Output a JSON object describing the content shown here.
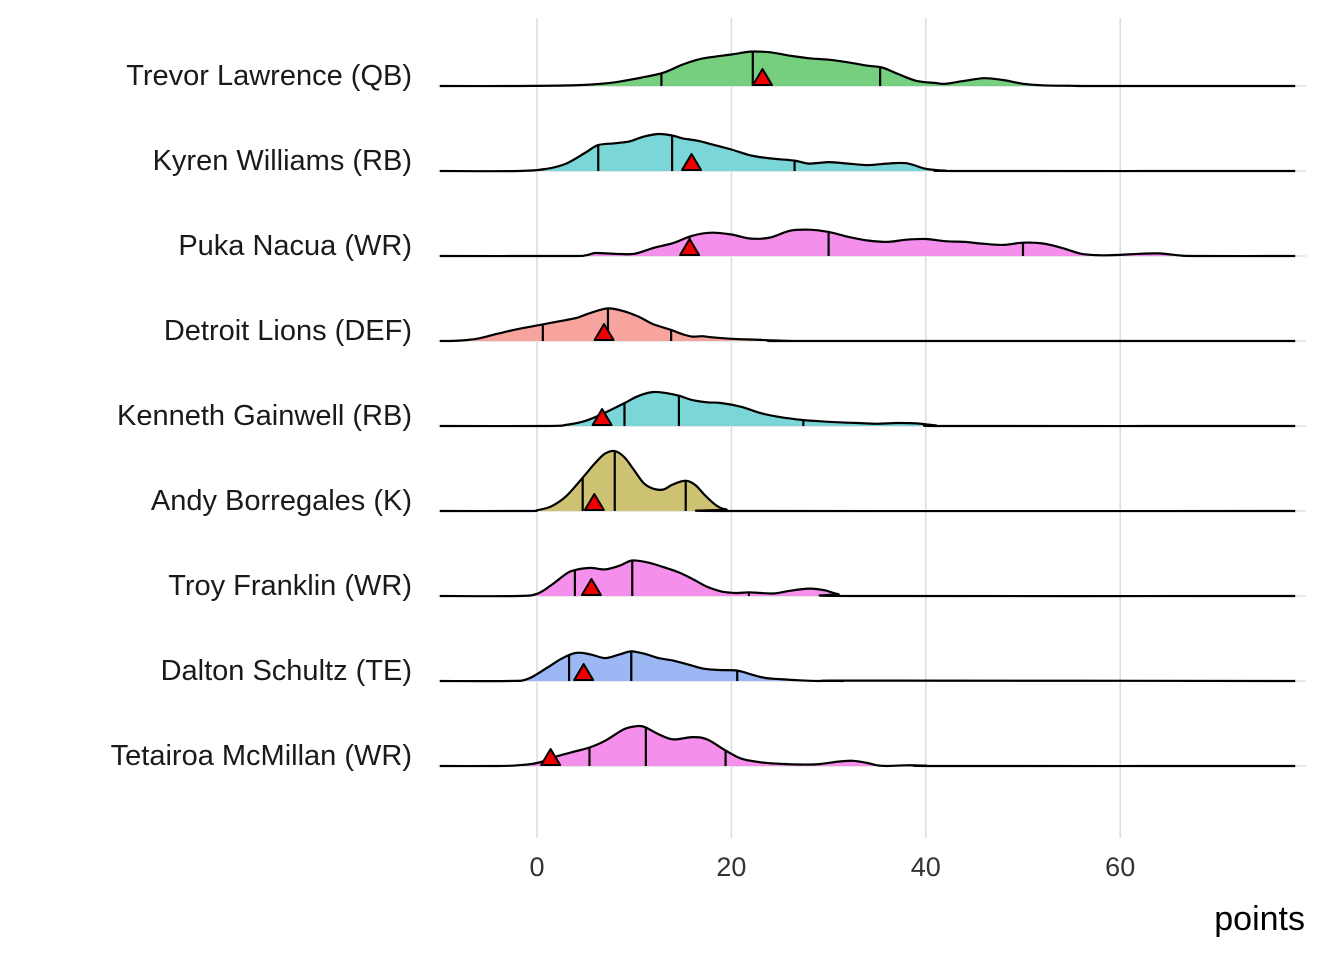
{
  "chart_data": {
    "type": "ridgeline",
    "xlabel": "points",
    "ylabel": "",
    "xlim": [
      -10,
      78
    ],
    "xticks": [
      0,
      20,
      40,
      60
    ],
    "grid": true,
    "players": [
      {
        "label": "Trevor Lawrence (QB)",
        "color": "#6fcd7a",
        "actual": 23.2,
        "quantiles": [
          12.8,
          22.2,
          35.3
        ],
        "density": [
          [
            -10,
            0
          ],
          [
            -2,
            0
          ],
          [
            2,
            0.01
          ],
          [
            5,
            0.03
          ],
          [
            8,
            0.1
          ],
          [
            11,
            0.24
          ],
          [
            13,
            0.36
          ],
          [
            15,
            0.58
          ],
          [
            17,
            0.74
          ],
          [
            20,
            0.85
          ],
          [
            22,
            0.93
          ],
          [
            24,
            0.91
          ],
          [
            26,
            0.82
          ],
          [
            28,
            0.75
          ],
          [
            30,
            0.71
          ],
          [
            32,
            0.64
          ],
          [
            34,
            0.55
          ],
          [
            35.5,
            0.5
          ],
          [
            37,
            0.34
          ],
          [
            39,
            0.14
          ],
          [
            41,
            0.08
          ],
          [
            42,
            0.06
          ],
          [
            44,
            0.14
          ],
          [
            46,
            0.21
          ],
          [
            48,
            0.16
          ],
          [
            50,
            0.06
          ],
          [
            52,
            0.02
          ],
          [
            55,
            0.005
          ],
          [
            58,
            0
          ],
          [
            78,
            0
          ]
        ]
      },
      {
        "label": "Kyren Williams (RB)",
        "color": "#76d4d6",
        "actual": 15.9,
        "quantiles": [
          6.3,
          13.9,
          26.5
        ],
        "density": [
          [
            -10,
            0
          ],
          [
            -2,
            0
          ],
          [
            1,
            0.06
          ],
          [
            3,
            0.2
          ],
          [
            5,
            0.5
          ],
          [
            6.3,
            0.7
          ],
          [
            8,
            0.75
          ],
          [
            9.5,
            0.8
          ],
          [
            11,
            0.93
          ],
          [
            12.5,
            1.0
          ],
          [
            13.9,
            0.96
          ],
          [
            15,
            0.88
          ],
          [
            16.5,
            0.82
          ],
          [
            18,
            0.72
          ],
          [
            20,
            0.58
          ],
          [
            22,
            0.42
          ],
          [
            24,
            0.34
          ],
          [
            26.5,
            0.28
          ],
          [
            28,
            0.2
          ],
          [
            30,
            0.24
          ],
          [
            32,
            0.2
          ],
          [
            34,
            0.16
          ],
          [
            36,
            0.2
          ],
          [
            38,
            0.21
          ],
          [
            40,
            0.06
          ],
          [
            42,
            0.01
          ],
          [
            44,
            0
          ],
          [
            78,
            0
          ]
        ]
      },
      {
        "label": "Puka Nacua (WR)",
        "color": "#f48aea",
        "actual": 15.7,
        "quantiles": [
          15.7,
          30.0,
          50.0
        ],
        "density": [
          [
            -10,
            0
          ],
          [
            3,
            0
          ],
          [
            5,
            0.02
          ],
          [
            6,
            0.08
          ],
          [
            8,
            0.06
          ],
          [
            10,
            0.06
          ],
          [
            12,
            0.22
          ],
          [
            14,
            0.35
          ],
          [
            16,
            0.55
          ],
          [
            18,
            0.63
          ],
          [
            20,
            0.58
          ],
          [
            22,
            0.47
          ],
          [
            24,
            0.5
          ],
          [
            26,
            0.68
          ],
          [
            28,
            0.71
          ],
          [
            30,
            0.65
          ],
          [
            32,
            0.52
          ],
          [
            34,
            0.42
          ],
          [
            36,
            0.38
          ],
          [
            38,
            0.44
          ],
          [
            40,
            0.46
          ],
          [
            42,
            0.4
          ],
          [
            44,
            0.38
          ],
          [
            46,
            0.33
          ],
          [
            48,
            0.3
          ],
          [
            50,
            0.36
          ],
          [
            52,
            0.34
          ],
          [
            54,
            0.22
          ],
          [
            56,
            0.06
          ],
          [
            58,
            0.02
          ],
          [
            60,
            0.03
          ],
          [
            62,
            0.06
          ],
          [
            64,
            0.07
          ],
          [
            66,
            0.02
          ],
          [
            68,
            0
          ],
          [
            78,
            0
          ]
        ]
      },
      {
        "label": "Detroit Lions (DEF)",
        "color": "#f7a09b",
        "actual": 6.9,
        "quantiles": [
          0.6,
          7.3,
          13.8
        ],
        "density": [
          [
            -10,
            0
          ],
          [
            -8,
            0.01
          ],
          [
            -6,
            0.07
          ],
          [
            -4,
            0.2
          ],
          [
            -2,
            0.32
          ],
          [
            0.6,
            0.45
          ],
          [
            2,
            0.52
          ],
          [
            4,
            0.62
          ],
          [
            5.5,
            0.76
          ],
          [
            7.3,
            0.88
          ],
          [
            9,
            0.8
          ],
          [
            10.5,
            0.65
          ],
          [
            12,
            0.45
          ],
          [
            13.8,
            0.3
          ],
          [
            15,
            0.18
          ],
          [
            16,
            0.12
          ],
          [
            17,
            0.13
          ],
          [
            18,
            0.1
          ],
          [
            20,
            0.06
          ],
          [
            22,
            0.04
          ],
          [
            24,
            0.02
          ],
          [
            26,
            0.005
          ],
          [
            28,
            0
          ],
          [
            78,
            0
          ]
        ]
      },
      {
        "label": "Kenneth Gainwell (RB)",
        "color": "#76d4d6",
        "actual": 6.7,
        "quantiles": [
          9.0,
          14.6,
          27.4
        ],
        "density": [
          [
            -10,
            0
          ],
          [
            1,
            0
          ],
          [
            3,
            0.03
          ],
          [
            5,
            0.14
          ],
          [
            7,
            0.36
          ],
          [
            9,
            0.62
          ],
          [
            10.5,
            0.82
          ],
          [
            12,
            0.92
          ],
          [
            13.5,
            0.88
          ],
          [
            14.6,
            0.82
          ],
          [
            16,
            0.7
          ],
          [
            17.5,
            0.64
          ],
          [
            19,
            0.62
          ],
          [
            21,
            0.52
          ],
          [
            23,
            0.35
          ],
          [
            25,
            0.24
          ],
          [
            27.4,
            0.16
          ],
          [
            29,
            0.13
          ],
          [
            31,
            0.1
          ],
          [
            33,
            0.08
          ],
          [
            35,
            0.06
          ],
          [
            37,
            0.08
          ],
          [
            39,
            0.07
          ],
          [
            41,
            0.02
          ],
          [
            43,
            0
          ],
          [
            78,
            0
          ]
        ]
      },
      {
        "label": "Andy Borregales (K)",
        "color": "#cbbe6c",
        "actual": 5.9,
        "quantiles": [
          4.7,
          8.0,
          15.3
        ],
        "density": [
          [
            -10,
            0
          ],
          [
            -1,
            0
          ],
          [
            0,
            0.02
          ],
          [
            1.5,
            0.13
          ],
          [
            3,
            0.4
          ],
          [
            4.7,
            0.9
          ],
          [
            6,
            1.3
          ],
          [
            7,
            1.55
          ],
          [
            8,
            1.62
          ],
          [
            9,
            1.45
          ],
          [
            10,
            1.1
          ],
          [
            11,
            0.75
          ],
          [
            12,
            0.6
          ],
          [
            13,
            0.58
          ],
          [
            14,
            0.72
          ],
          [
            15.3,
            0.82
          ],
          [
            16.3,
            0.7
          ],
          [
            17.3,
            0.42
          ],
          [
            18.5,
            0.14
          ],
          [
            19.5,
            0.04
          ],
          [
            21,
            0
          ],
          [
            78,
            0
          ]
        ]
      },
      {
        "label": "Troy Franklin (WR)",
        "color": "#f48aea",
        "actual": 5.6,
        "quantiles": [
          3.9,
          9.8,
          21.8
        ],
        "density": [
          [
            -10,
            0
          ],
          [
            -2,
            0
          ],
          [
            0,
            0.06
          ],
          [
            1.5,
            0.3
          ],
          [
            3,
            0.6
          ],
          [
            3.9,
            0.7
          ],
          [
            5.5,
            0.76
          ],
          [
            7,
            0.72
          ],
          [
            8.5,
            0.82
          ],
          [
            9.8,
            0.96
          ],
          [
            11.5,
            0.9
          ],
          [
            13,
            0.78
          ],
          [
            14.5,
            0.65
          ],
          [
            16,
            0.46
          ],
          [
            17.5,
            0.25
          ],
          [
            19,
            0.12
          ],
          [
            20.5,
            0.08
          ],
          [
            21.8,
            0.1
          ],
          [
            23,
            0.08
          ],
          [
            24.5,
            0.07
          ],
          [
            26,
            0.14
          ],
          [
            28,
            0.2
          ],
          [
            29.5,
            0.16
          ],
          [
            31,
            0.05
          ],
          [
            33,
            0
          ],
          [
            78,
            0
          ]
        ]
      },
      {
        "label": "Dalton Schultz (TE)",
        "color": "#97b5f5",
        "actual": 4.8,
        "quantiles": [
          3.3,
          9.7,
          20.6
        ],
        "density": [
          [
            -10,
            0
          ],
          [
            -3,
            0
          ],
          [
            -1,
            0.05
          ],
          [
            1,
            0.35
          ],
          [
            2.5,
            0.6
          ],
          [
            4,
            0.76
          ],
          [
            5.5,
            0.72
          ],
          [
            7,
            0.62
          ],
          [
            8.5,
            0.72
          ],
          [
            9.7,
            0.8
          ],
          [
            11,
            0.74
          ],
          [
            12.5,
            0.62
          ],
          [
            14,
            0.55
          ],
          [
            15.5,
            0.45
          ],
          [
            17,
            0.34
          ],
          [
            18.5,
            0.3
          ],
          [
            20.6,
            0.28
          ],
          [
            22,
            0.18
          ],
          [
            23.5,
            0.08
          ],
          [
            25,
            0.05
          ],
          [
            27,
            0.02
          ],
          [
            29,
            0
          ],
          [
            30,
            0.01
          ],
          [
            31.5,
            0
          ],
          [
            33,
            0.01
          ],
          [
            78,
            0
          ]
        ]
      },
      {
        "label": "Tetairoa McMillan (WR)",
        "color": "#f48aea",
        "actual": 1.4,
        "quantiles": [
          5.4,
          11.2,
          19.4
        ],
        "density": [
          [
            -10,
            0
          ],
          [
            -4,
            0
          ],
          [
            -2,
            0.02
          ],
          [
            0,
            0.08
          ],
          [
            2,
            0.26
          ],
          [
            4,
            0.4
          ],
          [
            5.4,
            0.5
          ],
          [
            7,
            0.68
          ],
          [
            9,
            1.0
          ],
          [
            10.5,
            1.08
          ],
          [
            11.2,
            1.04
          ],
          [
            12.5,
            0.86
          ],
          [
            14,
            0.72
          ],
          [
            16,
            0.78
          ],
          [
            17.5,
            0.72
          ],
          [
            19.4,
            0.42
          ],
          [
            21,
            0.2
          ],
          [
            23,
            0.1
          ],
          [
            25,
            0.06
          ],
          [
            27,
            0.04
          ],
          [
            29,
            0.05
          ],
          [
            31,
            0.12
          ],
          [
            32.5,
            0.14
          ],
          [
            34,
            0.08
          ],
          [
            35,
            0.02
          ],
          [
            36,
            0
          ],
          [
            38,
            0.02
          ],
          [
            40,
            0.01
          ],
          [
            42,
            0
          ],
          [
            78,
            0
          ]
        ]
      }
    ]
  }
}
